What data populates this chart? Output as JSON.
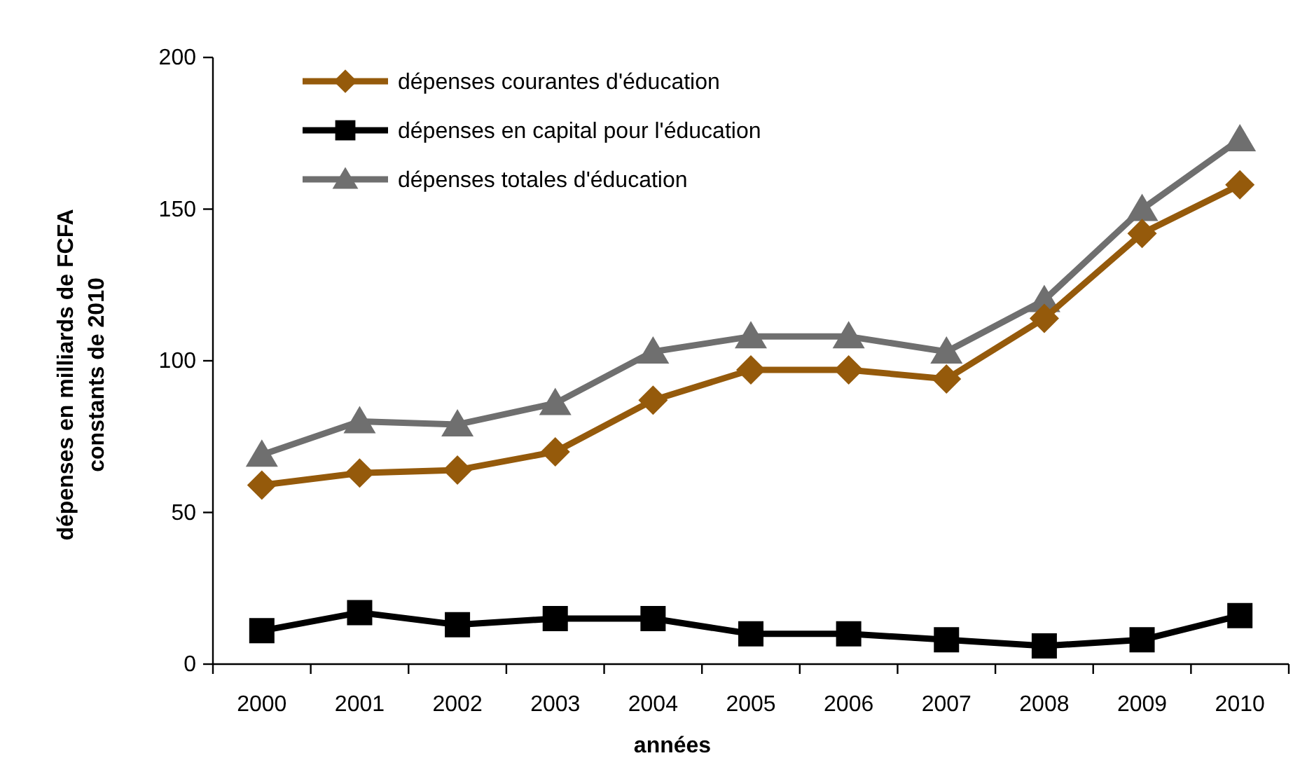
{
  "chart_data": {
    "type": "line",
    "categories": [
      "2000",
      "2001",
      "2002",
      "2003",
      "2004",
      "2005",
      "2006",
      "2007",
      "2008",
      "2009",
      "2010"
    ],
    "series": [
      {
        "name": "dépenses courantes d'éducation",
        "color": "#955a0b",
        "marker": "diamond",
        "values": [
          59,
          63,
          64,
          70,
          87,
          97,
          97,
          94,
          114,
          142,
          158
        ]
      },
      {
        "name": "dépenses en capital pour l'éducation",
        "color": "#000000",
        "marker": "square",
        "values": [
          11,
          17,
          13,
          15,
          15,
          10,
          10,
          8,
          6,
          8,
          16
        ]
      },
      {
        "name": "dépenses totales d'éducation",
        "color": "#6f6f6f",
        "marker": "triangle",
        "values": [
          69,
          80,
          79,
          86,
          103,
          108,
          108,
          103,
          120,
          150,
          173
        ]
      }
    ],
    "xlabel": "années",
    "ylabel": "dépenses en milliards de FCFA\nconstants de 2010",
    "ylim": [
      0,
      200
    ],
    "yticks": [
      0,
      50,
      100,
      150,
      200
    ],
    "legend": "top left",
    "line_style": "solid"
  }
}
